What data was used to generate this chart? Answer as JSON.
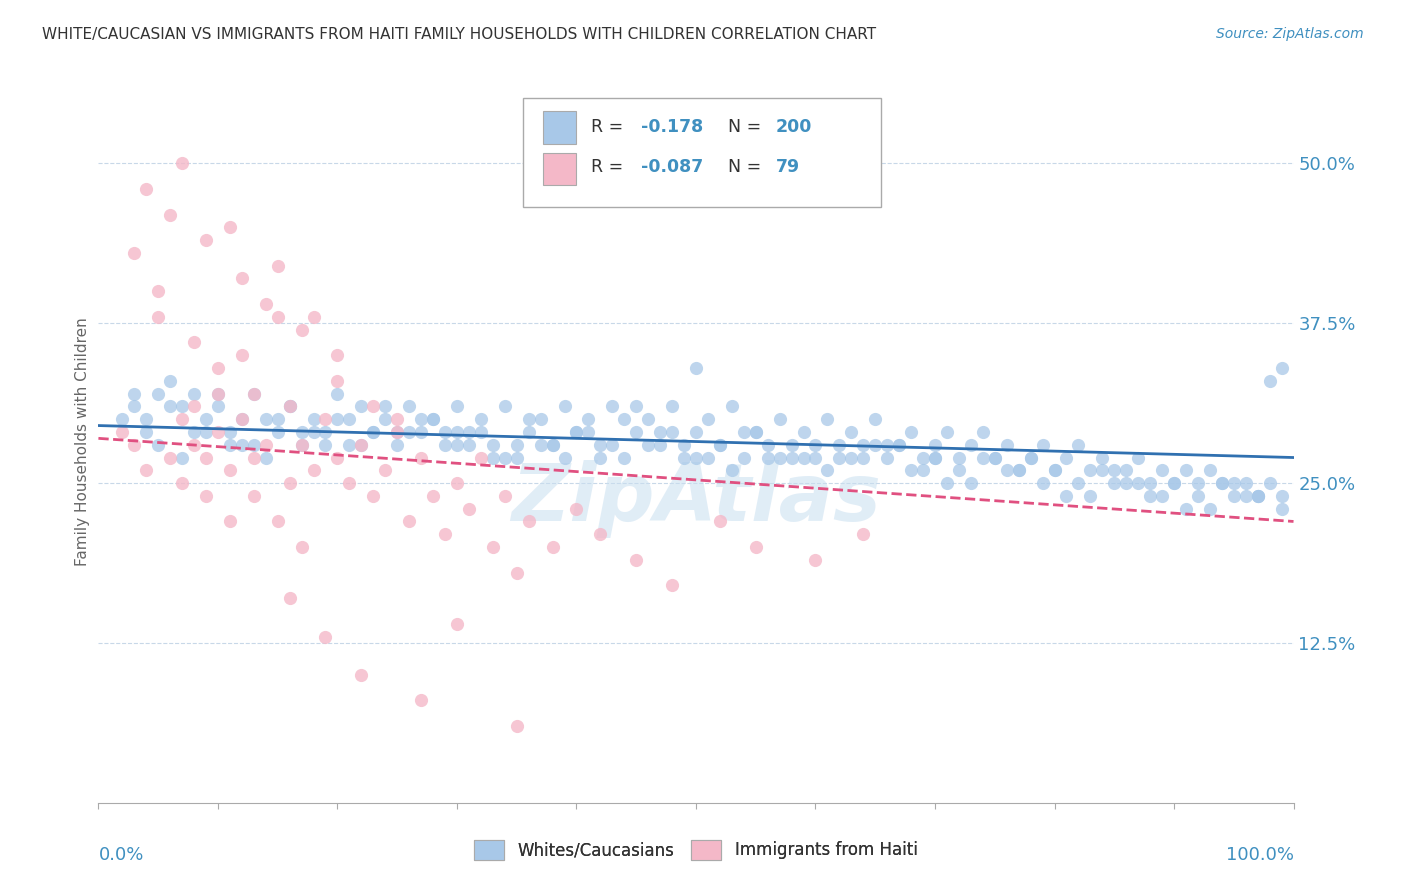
{
  "title": "WHITE/CAUCASIAN VS IMMIGRANTS FROM HAITI FAMILY HOUSEHOLDS WITH CHILDREN CORRELATION CHART",
  "source": "Source: ZipAtlas.com",
  "ylabel": "Family Households with Children",
  "yticks": [
    "12.5%",
    "25.0%",
    "37.5%",
    "50.0%"
  ],
  "ytick_values": [
    0.125,
    0.25,
    0.375,
    0.5
  ],
  "xrange": [
    0,
    1.0
  ],
  "yrange": [
    0,
    0.565
  ],
  "blue_color": "#a8c8e8",
  "pink_color": "#f4b8c8",
  "blue_line_color": "#3070b0",
  "pink_line_color": "#e05080",
  "text_color": "#4090c0",
  "title_color": "#333333",
  "white_scatter_x": [
    0.02,
    0.03,
    0.04,
    0.05,
    0.06,
    0.07,
    0.08,
    0.09,
    0.1,
    0.11,
    0.12,
    0.13,
    0.14,
    0.15,
    0.16,
    0.17,
    0.18,
    0.19,
    0.2,
    0.21,
    0.22,
    0.23,
    0.24,
    0.25,
    0.26,
    0.27,
    0.28,
    0.29,
    0.3,
    0.31,
    0.32,
    0.33,
    0.34,
    0.35,
    0.36,
    0.37,
    0.38,
    0.39,
    0.4,
    0.41,
    0.42,
    0.43,
    0.44,
    0.45,
    0.46,
    0.47,
    0.48,
    0.49,
    0.5,
    0.51,
    0.52,
    0.53,
    0.54,
    0.55,
    0.56,
    0.57,
    0.58,
    0.59,
    0.6,
    0.61,
    0.62,
    0.63,
    0.64,
    0.65,
    0.66,
    0.67,
    0.68,
    0.69,
    0.7,
    0.71,
    0.72,
    0.73,
    0.74,
    0.75,
    0.76,
    0.77,
    0.78,
    0.79,
    0.8,
    0.81,
    0.82,
    0.83,
    0.84,
    0.85,
    0.86,
    0.87,
    0.88,
    0.89,
    0.9,
    0.91,
    0.92,
    0.93,
    0.94,
    0.95,
    0.96,
    0.97,
    0.98,
    0.99,
    0.99,
    0.98,
    0.04,
    0.06,
    0.08,
    0.1,
    0.12,
    0.14,
    0.16,
    0.18,
    0.2,
    0.22,
    0.24,
    0.26,
    0.28,
    0.3,
    0.32,
    0.34,
    0.36,
    0.38,
    0.4,
    0.42,
    0.44,
    0.46,
    0.48,
    0.5,
    0.52,
    0.54,
    0.56,
    0.58,
    0.6,
    0.62,
    0.64,
    0.66,
    0.68,
    0.7,
    0.72,
    0.74,
    0.76,
    0.78,
    0.8,
    0.82,
    0.84,
    0.86,
    0.88,
    0.9,
    0.92,
    0.94,
    0.96,
    0.05,
    0.15,
    0.25,
    0.35,
    0.45,
    0.55,
    0.65,
    0.75,
    0.85,
    0.95,
    0.07,
    0.17,
    0.27,
    0.37,
    0.47,
    0.57,
    0.67,
    0.77,
    0.87,
    0.97,
    0.09,
    0.19,
    0.29,
    0.39,
    0.49,
    0.59,
    0.69,
    0.79,
    0.89,
    0.99,
    0.11,
    0.21,
    0.31,
    0.41,
    0.51,
    0.61,
    0.71,
    0.81,
    0.91,
    0.13,
    0.23,
    0.33,
    0.43,
    0.53,
    0.63,
    0.73,
    0.83,
    0.93,
    0.03,
    0.97,
    0.5,
    0.3,
    0.7
  ],
  "white_scatter_y": [
    0.3,
    0.31,
    0.29,
    0.28,
    0.33,
    0.27,
    0.32,
    0.29,
    0.31,
    0.28,
    0.3,
    0.32,
    0.27,
    0.29,
    0.31,
    0.28,
    0.3,
    0.29,
    0.32,
    0.28,
    0.31,
    0.29,
    0.3,
    0.28,
    0.31,
    0.29,
    0.3,
    0.28,
    0.31,
    0.29,
    0.3,
    0.28,
    0.31,
    0.27,
    0.29,
    0.3,
    0.28,
    0.31,
    0.29,
    0.3,
    0.28,
    0.31,
    0.27,
    0.29,
    0.3,
    0.28,
    0.31,
    0.27,
    0.29,
    0.3,
    0.28,
    0.31,
    0.27,
    0.29,
    0.28,
    0.3,
    0.27,
    0.29,
    0.28,
    0.3,
    0.27,
    0.29,
    0.28,
    0.3,
    0.27,
    0.28,
    0.29,
    0.27,
    0.28,
    0.29,
    0.27,
    0.28,
    0.29,
    0.27,
    0.28,
    0.26,
    0.27,
    0.28,
    0.26,
    0.27,
    0.28,
    0.26,
    0.27,
    0.25,
    0.26,
    0.27,
    0.25,
    0.26,
    0.25,
    0.26,
    0.25,
    0.26,
    0.25,
    0.24,
    0.25,
    0.24,
    0.25,
    0.24,
    0.34,
    0.33,
    0.3,
    0.31,
    0.29,
    0.32,
    0.28,
    0.3,
    0.31,
    0.29,
    0.3,
    0.28,
    0.31,
    0.29,
    0.3,
    0.28,
    0.29,
    0.27,
    0.3,
    0.28,
    0.29,
    0.27,
    0.3,
    0.28,
    0.29,
    0.27,
    0.28,
    0.29,
    0.27,
    0.28,
    0.27,
    0.28,
    0.27,
    0.28,
    0.26,
    0.27,
    0.26,
    0.27,
    0.26,
    0.27,
    0.26,
    0.25,
    0.26,
    0.25,
    0.24,
    0.25,
    0.24,
    0.25,
    0.24,
    0.32,
    0.3,
    0.29,
    0.28,
    0.31,
    0.29,
    0.28,
    0.27,
    0.26,
    0.25,
    0.31,
    0.29,
    0.3,
    0.28,
    0.29,
    0.27,
    0.28,
    0.26,
    0.25,
    0.24,
    0.3,
    0.28,
    0.29,
    0.27,
    0.28,
    0.27,
    0.26,
    0.25,
    0.24,
    0.23,
    0.29,
    0.3,
    0.28,
    0.29,
    0.27,
    0.26,
    0.25,
    0.24,
    0.23,
    0.28,
    0.29,
    0.27,
    0.28,
    0.26,
    0.27,
    0.25,
    0.24,
    0.23,
    0.32,
    0.24,
    0.34,
    0.29,
    0.27
  ],
  "haiti_scatter_x": [
    0.02,
    0.03,
    0.04,
    0.05,
    0.06,
    0.07,
    0.07,
    0.08,
    0.08,
    0.09,
    0.09,
    0.1,
    0.1,
    0.11,
    0.11,
    0.12,
    0.12,
    0.13,
    0.13,
    0.14,
    0.15,
    0.15,
    0.16,
    0.16,
    0.17,
    0.17,
    0.18,
    0.19,
    0.2,
    0.2,
    0.21,
    0.22,
    0.23,
    0.24,
    0.25,
    0.26,
    0.27,
    0.28,
    0.29,
    0.3,
    0.31,
    0.32,
    0.33,
    0.34,
    0.35,
    0.36,
    0.38,
    0.4,
    0.42,
    0.45,
    0.48,
    0.52,
    0.55,
    0.6,
    0.64,
    0.03,
    0.05,
    0.08,
    0.1,
    0.13,
    0.15,
    0.18,
    0.2,
    0.23,
    0.06,
    0.09,
    0.12,
    0.14,
    0.17,
    0.25,
    0.04,
    0.07,
    0.11,
    0.16,
    0.19,
    0.22,
    0.27,
    0.3,
    0.35
  ],
  "haiti_scatter_y": [
    0.29,
    0.28,
    0.26,
    0.38,
    0.27,
    0.3,
    0.25,
    0.28,
    0.31,
    0.27,
    0.24,
    0.29,
    0.32,
    0.26,
    0.22,
    0.3,
    0.35,
    0.27,
    0.24,
    0.28,
    0.38,
    0.22,
    0.31,
    0.25,
    0.28,
    0.2,
    0.26,
    0.3,
    0.27,
    0.33,
    0.25,
    0.28,
    0.24,
    0.26,
    0.3,
    0.22,
    0.27,
    0.24,
    0.21,
    0.25,
    0.23,
    0.27,
    0.2,
    0.24,
    0.18,
    0.22,
    0.2,
    0.23,
    0.21,
    0.19,
    0.17,
    0.22,
    0.2,
    0.19,
    0.21,
    0.43,
    0.4,
    0.36,
    0.34,
    0.32,
    0.42,
    0.38,
    0.35,
    0.31,
    0.46,
    0.44,
    0.41,
    0.39,
    0.37,
    0.29,
    0.48,
    0.5,
    0.45,
    0.16,
    0.13,
    0.1,
    0.08,
    0.14,
    0.06
  ],
  "blue_trend_start_y": 0.295,
  "blue_trend_end_y": 0.27,
  "pink_trend_start_y": 0.285,
  "pink_trend_end_y": 0.22
}
